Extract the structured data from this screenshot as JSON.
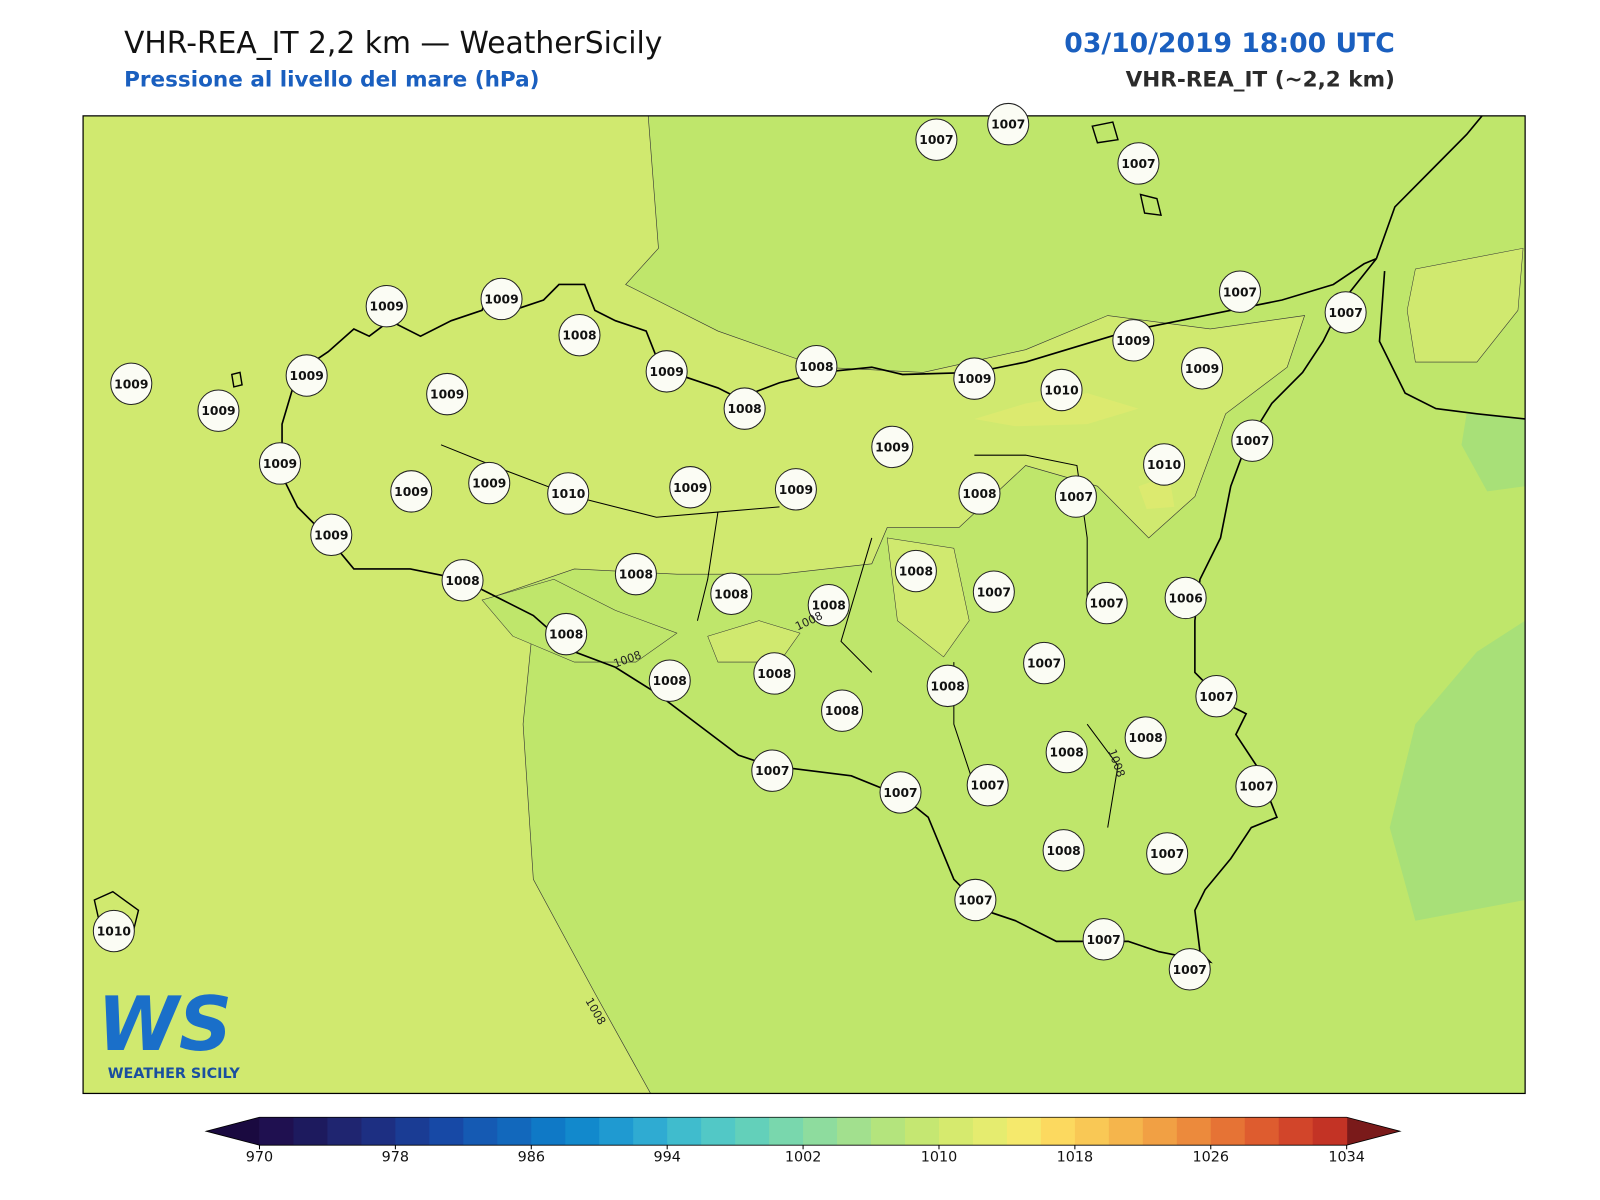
{
  "header": {
    "title": "VHR-REA_IT 2,2 km — WeatherSicily",
    "subtitle": "Pressione al livello del mare (hPa)",
    "datetime": "03/10/2019 18:00 UTC",
    "model": "VHR-REA_IT (~2,2 km)"
  },
  "stations": [
    1007,
    1007,
    1007,
    1009,
    1009,
    1008,
    1009,
    1008,
    1008,
    1009,
    1010,
    1009,
    1009,
    1007,
    1007,
    1009,
    1009,
    1009,
    1009,
    1009,
    1009,
    1009,
    1010,
    1009,
    1009,
    1009,
    1008,
    1007,
    1010,
    1007,
    1009,
    1008,
    1008,
    1008,
    1008,
    1008,
    1007,
    1007,
    1006,
    1008,
    1008,
    1008,
    1008,
    1008,
    1007,
    1007,
    1008,
    1008,
    1007,
    1007,
    1007,
    1007,
    1008,
    1007,
    1007,
    1007,
    1007,
    1010
  ],
  "contour_labels": [
    1008,
    1008,
    1008,
    1008
  ],
  "logo": {
    "mark": "WS",
    "name": "WEATHER SICILY"
  },
  "colorbar": {
    "levels": [
      970,
      972,
      974,
      976,
      978,
      980,
      982,
      984,
      986,
      988,
      990,
      992,
      994,
      996,
      998,
      1000,
      1002,
      1004,
      1006,
      1008,
      1010,
      1012,
      1014,
      1016,
      1018,
      1020,
      1022,
      1024,
      1026,
      1028,
      1030,
      1032,
      1034
    ],
    "colors": [
      "#1f1050",
      "#1d1a5e",
      "#1f2570",
      "#1d2f82",
      "#1a3c94",
      "#1749a6",
      "#155ab3",
      "#1268bc",
      "#0f79c6",
      "#1289cc",
      "#1f9ad1",
      "#2fabd2",
      "#40bccd",
      "#52c8c6",
      "#63d0ba",
      "#79d7ad",
      "#8edc9e",
      "#a2e08e",
      "#b4e47d",
      "#c5e772",
      "#d6ea6e",
      "#e5ec6f",
      "#f5e96c",
      "#fcd95f",
      "#f9c855",
      "#f5b54c",
      "#f1a044",
      "#ec8a3c",
      "#e67335",
      "#de5c2f",
      "#d2452a",
      "#c33325"
    ],
    "under_color": "#1a0a40",
    "over_color": "#7a1a1a",
    "ticks": [
      970,
      978,
      986,
      994,
      1002,
      1010,
      1018,
      1026,
      1034
    ]
  }
}
